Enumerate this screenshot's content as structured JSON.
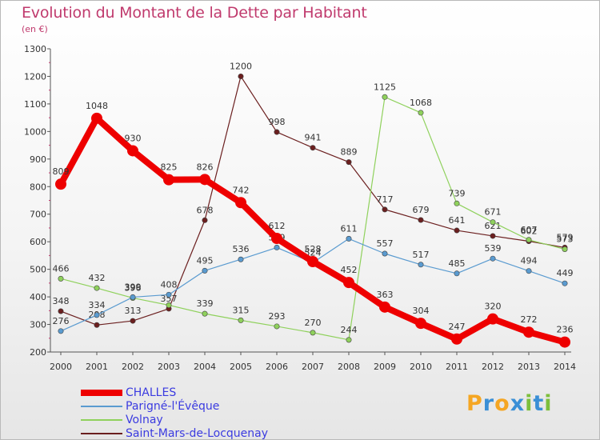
{
  "header": {
    "title": "Evolution du Montant de la Dette par Habitant",
    "subtitle": "(en €)"
  },
  "logo": {
    "letters": [
      "P",
      "r",
      "o",
      "x",
      "i",
      "t",
      "i"
    ],
    "colors": [
      "#f5a623",
      "#3a8fd6",
      "#f5a623",
      "#3a8fd6",
      "#7dbf3b",
      "#3a8fd6",
      "#7dbf3b"
    ]
  },
  "chart_data": {
    "type": "line",
    "title": "Evolution du Montant de la Dette par Habitant",
    "subtitle": "(en €)",
    "xlabel": "",
    "ylabel": "",
    "ylim": [
      200,
      1300
    ],
    "yticks": [
      200,
      300,
      400,
      500,
      600,
      700,
      800,
      900,
      1000,
      1100,
      1200,
      1300
    ],
    "grid": false,
    "legend_position": "bottom-left",
    "x": [
      2000,
      2001,
      2002,
      2003,
      2004,
      2005,
      2006,
      2007,
      2008,
      2009,
      2010,
      2011,
      2012,
      2013,
      2014
    ],
    "series": [
      {
        "name": "Saint-Mars-de-Locquenay",
        "color": "#6b1f1f",
        "width": 1.2,
        "values": [
          348,
          298,
          313,
          357,
          678,
          1200,
          998,
          941,
          889,
          717,
          679,
          641,
          621,
          602,
          579
        ],
        "labels": [
          "348",
          "298",
          "313",
          "357",
          "678",
          "1200",
          "998",
          "941",
          "889",
          "717",
          "679",
          "641",
          "621",
          "602",
          "579"
        ]
      },
      {
        "name": "Volnay",
        "color": "#8fd15c",
        "width": 1.2,
        "values": [
          466,
          432,
          396,
          370,
          339,
          315,
          293,
          270,
          244,
          1125,
          1068,
          739,
          671,
          607,
          573
        ],
        "labels": [
          "466",
          "432",
          "396",
          "",
          "339",
          "315",
          "293",
          "270",
          "244",
          "1125",
          "1068",
          "739",
          "671",
          "607",
          "573"
        ]
      },
      {
        "name": "Parigné-l'Évêque",
        "color": "#5a9bd0",
        "width": 1.2,
        "values": [
          276,
          334,
          399,
          408,
          495,
          536,
          579,
          524,
          611,
          557,
          517,
          485,
          539,
          494,
          449
        ],
        "labels": [
          "276",
          "334",
          "399",
          "408",
          "495",
          "536",
          "579",
          "524",
          "611",
          "557",
          "517",
          "485",
          "539",
          "494",
          "449"
        ]
      },
      {
        "name": "CHALLES",
        "color": "#ee0000",
        "width": 8,
        "values": [
          809,
          1048,
          930,
          825,
          826,
          742,
          612,
          528,
          452,
          363,
          304,
          247,
          320,
          272,
          236
        ],
        "labels": [
          "809",
          "1048",
          "930",
          "825",
          "826",
          "742",
          "612",
          "528",
          "452",
          "363",
          "304",
          "247",
          "320",
          "272",
          "236"
        ]
      }
    ],
    "legend": [
      {
        "name": "CHALLES",
        "color": "#ee0000"
      },
      {
        "name": "Parigné-l'Évêque",
        "color": "#5a9bd0"
      },
      {
        "name": "Volnay",
        "color": "#8fd15c"
      },
      {
        "name": "Saint-Mars-de-Locquenay",
        "color": "#6b1f1f"
      }
    ]
  }
}
